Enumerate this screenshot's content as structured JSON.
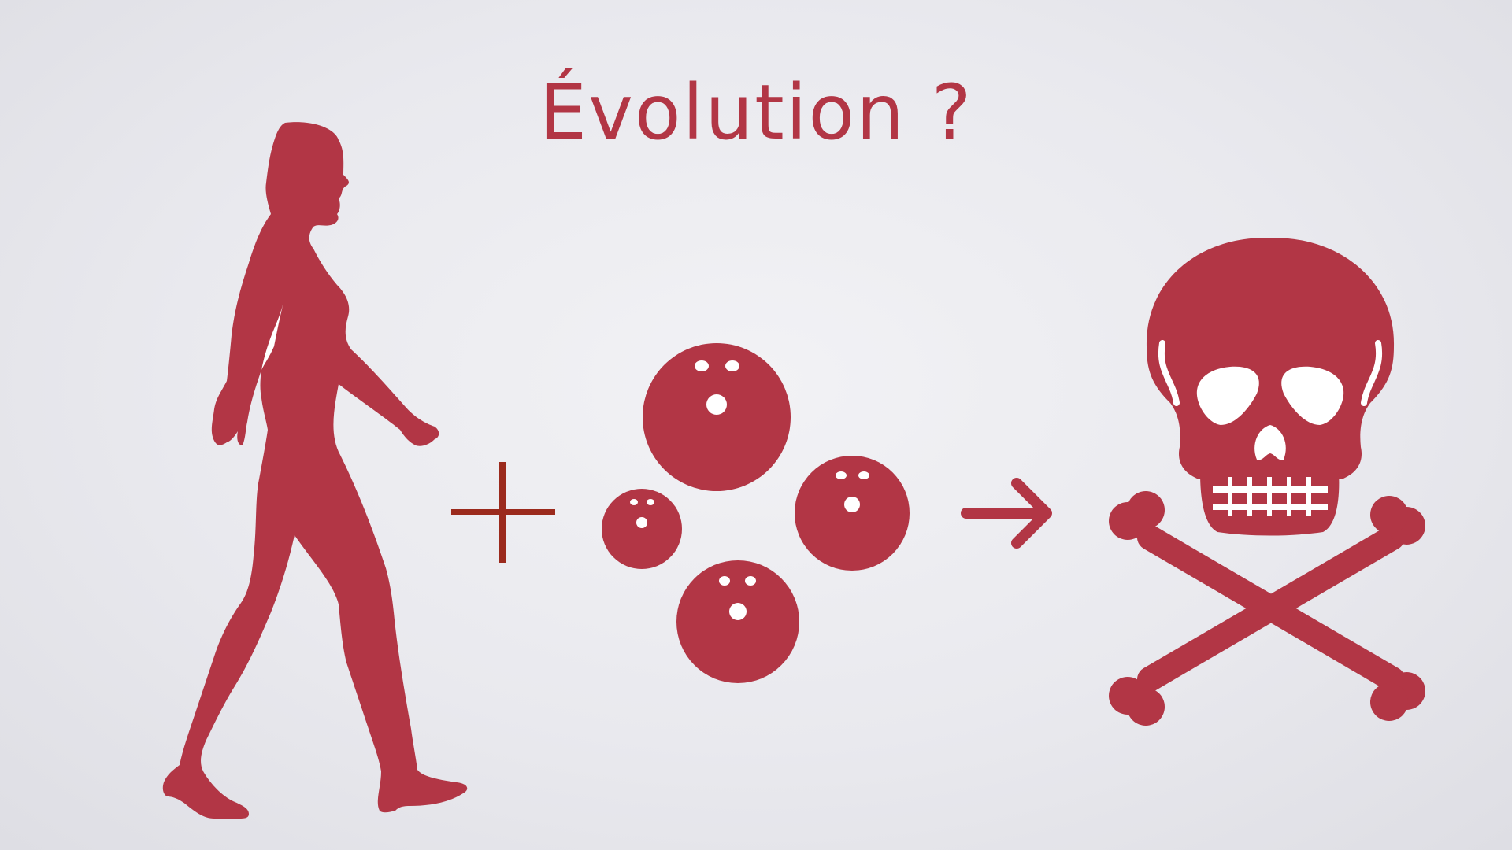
{
  "slide": {
    "title": "Évolution ?"
  },
  "colors": {
    "accent": "#b23645",
    "operator": "#9b2a1d",
    "background": "#ececf0",
    "highlight": "#ffffff"
  },
  "icons": {
    "person": "walking-woman-icon",
    "plus": "plus-icon",
    "balls": "bowling-ball-icon",
    "arrow": "arrow-right-icon",
    "result": "skull-crossbones-icon"
  }
}
